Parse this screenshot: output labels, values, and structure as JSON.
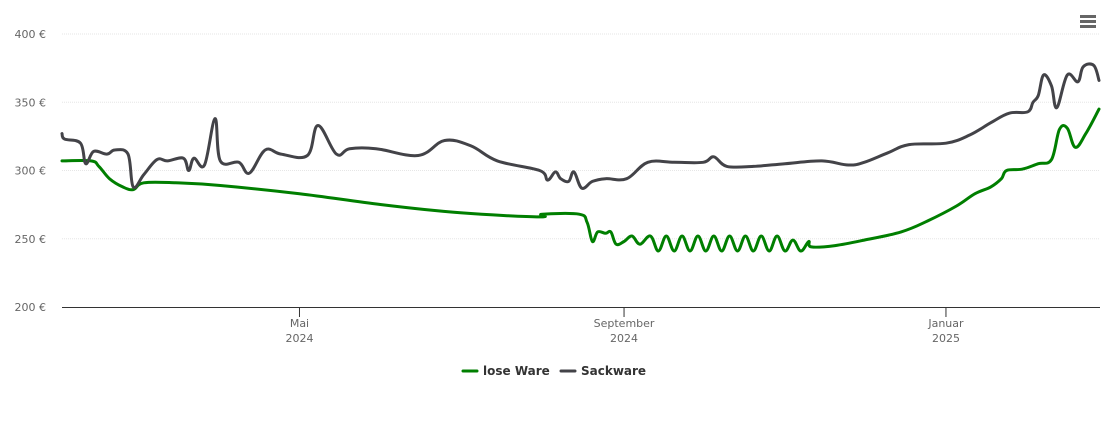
{
  "menu": {
    "icon": "hamburger-menu-icon"
  },
  "chart_data": {
    "type": "line",
    "title": "",
    "xlabel": "",
    "ylabel": "",
    "ylim": [
      200,
      400
    ],
    "y_ticks": [
      {
        "value": 200,
        "label": "200 €"
      },
      {
        "value": 250,
        "label": "250 €"
      },
      {
        "value": 300,
        "label": "300 €"
      },
      {
        "value": 350,
        "label": "350 €"
      },
      {
        "value": 400,
        "label": "400 €"
      }
    ],
    "x_range": [
      "2024-02-01",
      "2025-02-28"
    ],
    "x_ticks": [
      {
        "date": "2024-05-01",
        "line1": "Mai",
        "line2": "2024"
      },
      {
        "date": "2024-09-01",
        "line1": "September",
        "line2": "2024"
      },
      {
        "date": "2025-01-01",
        "line1": "Januar",
        "line2": "2025"
      }
    ],
    "grid": true,
    "legend": "bottom-center",
    "series": [
      {
        "name": "lose Ware",
        "color": "#007f00",
        "points": [
          [
            "2024-02-01",
            307
          ],
          [
            "2024-02-12",
            307
          ],
          [
            "2024-02-15",
            303
          ],
          [
            "2024-02-19",
            294
          ],
          [
            "2024-02-24",
            288
          ],
          [
            "2024-02-28",
            286
          ],
          [
            "2024-03-03",
            291
          ],
          [
            "2024-03-15",
            291
          ],
          [
            "2024-04-01",
            289
          ],
          [
            "2024-05-01",
            283
          ],
          [
            "2024-06-01",
            275
          ],
          [
            "2024-07-01",
            269
          ],
          [
            "2024-07-31",
            266
          ],
          [
            "2024-08-01",
            268
          ],
          [
            "2024-08-15",
            268
          ],
          [
            "2024-08-18",
            262
          ],
          [
            "2024-08-20",
            248
          ],
          [
            "2024-08-22",
            255
          ],
          [
            "2024-08-25",
            254
          ],
          [
            "2024-08-27",
            255
          ],
          [
            "2024-08-29",
            246
          ],
          [
            "2024-09-01",
            248
          ],
          [
            "2024-09-04",
            252
          ],
          [
            "2024-09-07",
            246
          ],
          [
            "2024-09-11",
            252
          ],
          [
            "2024-09-14",
            241
          ],
          [
            "2024-09-17",
            252
          ],
          [
            "2024-09-20",
            241
          ],
          [
            "2024-09-23",
            252
          ],
          [
            "2024-09-26",
            241
          ],
          [
            "2024-09-29",
            252
          ],
          [
            "2024-10-02",
            241
          ],
          [
            "2024-10-05",
            252
          ],
          [
            "2024-10-08",
            241
          ],
          [
            "2024-10-11",
            252
          ],
          [
            "2024-10-14",
            241
          ],
          [
            "2024-10-17",
            252
          ],
          [
            "2024-10-20",
            241
          ],
          [
            "2024-10-23",
            252
          ],
          [
            "2024-10-26",
            241
          ],
          [
            "2024-10-29",
            252
          ],
          [
            "2024-11-01",
            241
          ],
          [
            "2024-11-04",
            249
          ],
          [
            "2024-11-07",
            241
          ],
          [
            "2024-11-10",
            248
          ],
          [
            "2024-11-11",
            244
          ],
          [
            "2024-11-20",
            245
          ],
          [
            "2024-12-01",
            249
          ],
          [
            "2024-12-15",
            255
          ],
          [
            "2024-12-25",
            263
          ],
          [
            "2025-01-05",
            274
          ],
          [
            "2025-01-12",
            283
          ],
          [
            "2025-01-18",
            288
          ],
          [
            "2025-01-22",
            294
          ],
          [
            "2025-01-24",
            300
          ],
          [
            "2025-01-30",
            301
          ],
          [
            "2025-02-05",
            305
          ],
          [
            "2025-02-10",
            308
          ],
          [
            "2025-02-13",
            330
          ],
          [
            "2025-02-16",
            331
          ],
          [
            "2025-02-19",
            317
          ],
          [
            "2025-02-23",
            327
          ],
          [
            "2025-02-28",
            345
          ]
        ]
      },
      {
        "name": "Sackware",
        "color": "#434348",
        "points": [
          [
            "2024-02-01",
            327
          ],
          [
            "2024-02-02",
            323
          ],
          [
            "2024-02-08",
            320
          ],
          [
            "2024-02-10",
            305
          ],
          [
            "2024-02-13",
            314
          ],
          [
            "2024-02-18",
            312
          ],
          [
            "2024-02-21",
            315
          ],
          [
            "2024-02-26",
            312
          ],
          [
            "2024-02-28",
            288
          ],
          [
            "2024-03-03",
            297
          ],
          [
            "2024-03-08",
            308
          ],
          [
            "2024-03-12",
            307
          ],
          [
            "2024-03-18",
            309
          ],
          [
            "2024-03-20",
            300
          ],
          [
            "2024-03-22",
            309
          ],
          [
            "2024-03-26",
            304
          ],
          [
            "2024-03-30",
            338
          ],
          [
            "2024-04-01",
            307
          ],
          [
            "2024-04-08",
            306
          ],
          [
            "2024-04-12",
            298
          ],
          [
            "2024-04-18",
            315
          ],
          [
            "2024-04-24",
            312
          ],
          [
            "2024-05-04",
            311
          ],
          [
            "2024-05-08",
            333
          ],
          [
            "2024-05-15",
            312
          ],
          [
            "2024-05-20",
            316
          ],
          [
            "2024-05-30",
            316
          ],
          [
            "2024-06-15",
            311
          ],
          [
            "2024-06-25",
            322
          ],
          [
            "2024-07-05",
            318
          ],
          [
            "2024-07-15",
            307
          ],
          [
            "2024-07-31",
            300
          ],
          [
            "2024-08-03",
            293
          ],
          [
            "2024-08-06",
            299
          ],
          [
            "2024-08-08",
            294
          ],
          [
            "2024-08-11",
            292
          ],
          [
            "2024-08-13",
            299
          ],
          [
            "2024-08-16",
            287
          ],
          [
            "2024-08-20",
            292
          ],
          [
            "2024-08-25",
            294
          ],
          [
            "2024-09-02",
            294
          ],
          [
            "2024-09-10",
            306
          ],
          [
            "2024-09-20",
            306
          ],
          [
            "2024-10-01",
            306
          ],
          [
            "2024-10-05",
            310
          ],
          [
            "2024-10-10",
            303
          ],
          [
            "2024-10-20",
            303
          ],
          [
            "2024-11-01",
            305
          ],
          [
            "2024-11-15",
            307
          ],
          [
            "2024-11-25",
            304
          ],
          [
            "2024-12-01",
            306
          ],
          [
            "2024-12-10",
            313
          ],
          [
            "2024-12-18",
            319
          ],
          [
            "2025-01-01",
            320
          ],
          [
            "2025-01-10",
            326
          ],
          [
            "2025-01-18",
            335
          ],
          [
            "2025-01-25",
            342
          ],
          [
            "2025-02-01",
            343
          ],
          [
            "2025-02-03",
            350
          ],
          [
            "2025-02-05",
            355
          ],
          [
            "2025-02-07",
            370
          ],
          [
            "2025-02-10",
            362
          ],
          [
            "2025-02-12",
            346
          ],
          [
            "2025-02-16",
            370
          ],
          [
            "2025-02-20",
            365
          ],
          [
            "2025-02-22",
            376
          ],
          [
            "2025-02-26",
            377
          ],
          [
            "2025-02-28",
            366
          ]
        ]
      }
    ]
  }
}
